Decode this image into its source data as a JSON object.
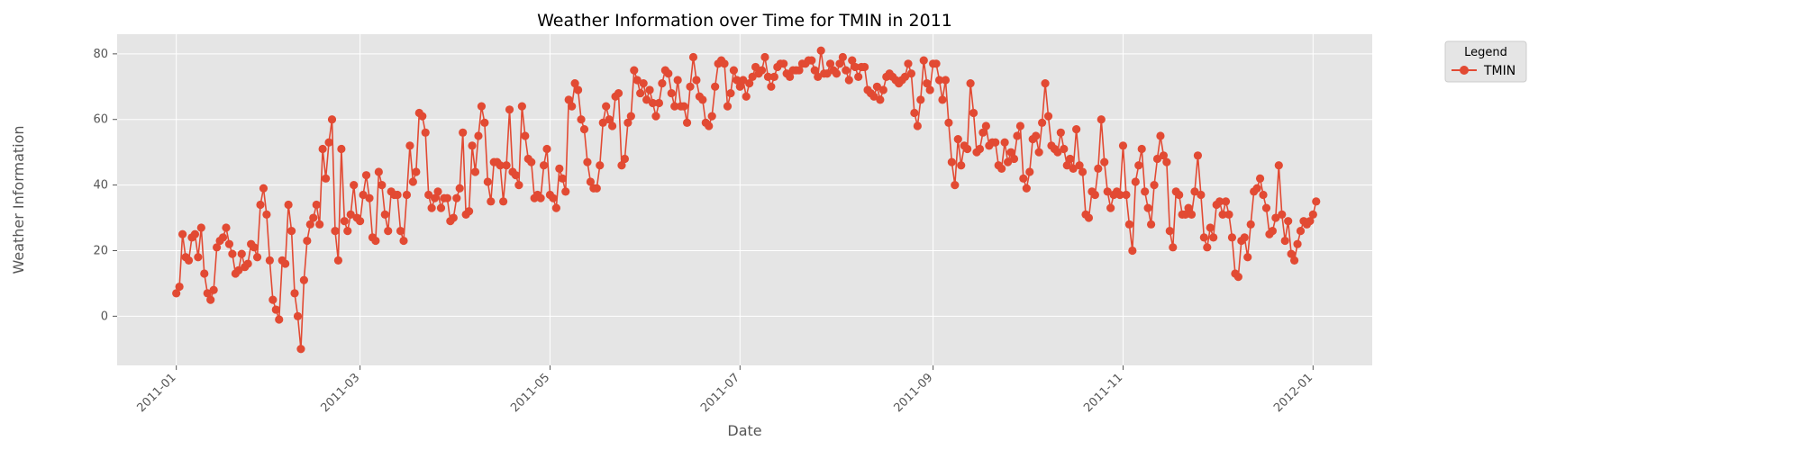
{
  "chart_data": {
    "type": "line",
    "title": "Weather Information over Time for TMIN in 2011",
    "xlabel": "Date",
    "ylabel": "Weather Information",
    "x_start": "2011-01-01",
    "x_range": [
      "2010-12-13",
      "2012-01-20"
    ],
    "ylim": [
      -15,
      86
    ],
    "x_ticks": [
      "2011-01",
      "2011-03",
      "2011-05",
      "2011-07",
      "2011-09",
      "2011-11",
      "2012-01"
    ],
    "y_ticks": [
      0,
      20,
      40,
      60,
      80
    ],
    "grid": true,
    "legend": {
      "title": "Legend",
      "placement": "outside-top-right"
    },
    "series": [
      {
        "name": "TMIN",
        "color": "#E24A33",
        "values": [
          7,
          9,
          25,
          18,
          17,
          24,
          25,
          18,
          27,
          13,
          7,
          5,
          8,
          21,
          23,
          24,
          27,
          22,
          19,
          13,
          14,
          19,
          15,
          16,
          22,
          21,
          18,
          34,
          39,
          31,
          17,
          5,
          2,
          -1,
          17,
          16,
          34,
          26,
          7,
          0,
          -10,
          11,
          23,
          28,
          30,
          34,
          28,
          51,
          42,
          53,
          60,
          26,
          17,
          51,
          29,
          26,
          31,
          40,
          30,
          29,
          37,
          43,
          36,
          24,
          23,
          44,
          40,
          31,
          26,
          38,
          37,
          37,
          26,
          23,
          37,
          52,
          41,
          44,
          62,
          61,
          56,
          37,
          33,
          36,
          38,
          33,
          36,
          36,
          29,
          30,
          36,
          39,
          56,
          31,
          32,
          52,
          44,
          55,
          64,
          59,
          41,
          35,
          47,
          47,
          46,
          35,
          46,
          63,
          44,
          43,
          40,
          64,
          55,
          48,
          47,
          36,
          37,
          36,
          46,
          51,
          37,
          36,
          33,
          45,
          42,
          38,
          66,
          64,
          71,
          69,
          60,
          57,
          47,
          41,
          39,
          39,
          46,
          59,
          64,
          60,
          58,
          67,
          68,
          46,
          48,
          59,
          61,
          75,
          72,
          68,
          71,
          66,
          69,
          65,
          61,
          65,
          71,
          75,
          74,
          68,
          64,
          72,
          64,
          64,
          59,
          70,
          79,
          72,
          67,
          66,
          59,
          58,
          61,
          70,
          77,
          78,
          77,
          64,
          68,
          75,
          72,
          70,
          72,
          67,
          71,
          73,
          76,
          74,
          75,
          79,
          73,
          70,
          73,
          76,
          77,
          77,
          74,
          73,
          75,
          75,
          75,
          77,
          77,
          78,
          78,
          75,
          73,
          81,
          74,
          74,
          77,
          75,
          74,
          77,
          79,
          75,
          72,
          78,
          76,
          73,
          76,
          76,
          69,
          68,
          67,
          70,
          66,
          69,
          73,
          74,
          73,
          72,
          71,
          72,
          73,
          77,
          74,
          62,
          58,
          66,
          78,
          71,
          69,
          77,
          77,
          72,
          66,
          72,
          59,
          47,
          40,
          54,
          46,
          52,
          51,
          71,
          62,
          50,
          51,
          56,
          58,
          52,
          53,
          53,
          46,
          45,
          53,
          47,
          50,
          48,
          55,
          58,
          42,
          39,
          44,
          54,
          55,
          50,
          59,
          71,
          61,
          52,
          51,
          50,
          56,
          51,
          46,
          48,
          45,
          57,
          46,
          44,
          31,
          30,
          38,
          37,
          45,
          60,
          47,
          38,
          33,
          37,
          38,
          37,
          52,
          37,
          28,
          20,
          41,
          46,
          51,
          38,
          33,
          28,
          40,
          48,
          55,
          49,
          47,
          26,
          21,
          38,
          37,
          31,
          31,
          33,
          31,
          38,
          49,
          37,
          24,
          21,
          27,
          24,
          34,
          35,
          31,
          35,
          31,
          24,
          13,
          12,
          23,
          24,
          18,
          28,
          38,
          39,
          42,
          37,
          33,
          25,
          26,
          30,
          46,
          31,
          23,
          29,
          19,
          17,
          22,
          26,
          29,
          28,
          29,
          31,
          35
        ]
      }
    ]
  }
}
